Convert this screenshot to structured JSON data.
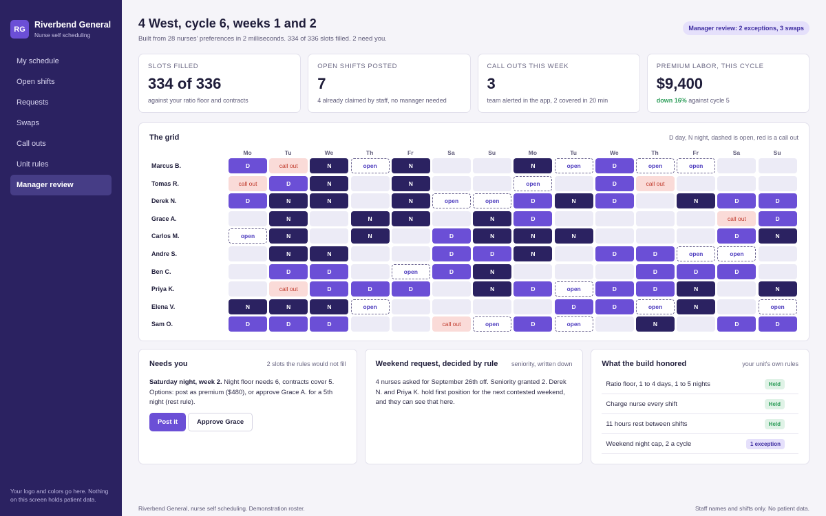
{
  "app": {
    "logo_initials": "RG",
    "name": "Riverbend General",
    "subtitle": "Nurse self scheduling"
  },
  "nav": [
    {
      "label": "My schedule",
      "active": false
    },
    {
      "label": "Open shifts",
      "active": false
    },
    {
      "label": "Requests",
      "active": false
    },
    {
      "label": "Swaps",
      "active": false
    },
    {
      "label": "Call outs",
      "active": false
    },
    {
      "label": "Unit rules",
      "active": false
    },
    {
      "label": "Manager review",
      "active": true
    }
  ],
  "sidebar_footer": "Your logo and colors go here. Nothing on this screen holds patient data.",
  "header": {
    "title": "4 West, cycle 6, weeks 1 and 2",
    "subtitle": "Built from 28 nurses' preferences in 2 milliseconds. 334 of 336 slots filled. 2 need you.",
    "badge": "Manager review: 2 exceptions, 3 swaps"
  },
  "kpis": [
    {
      "label": "Slots filled",
      "value": "334 of 336",
      "note": "against your ratio floor and contracts",
      "note_highlight": ""
    },
    {
      "label": "Open shifts posted",
      "value": "7",
      "note": "4 already claimed by staff, no manager needed",
      "note_highlight": ""
    },
    {
      "label": "Call outs this week",
      "value": "3",
      "note": "team alerted in the app, 2 covered in 20 min",
      "note_highlight": ""
    },
    {
      "label": "Premium labor, this cycle",
      "value": "$9,400",
      "note": "against cycle 5",
      "note_highlight": "down 16%"
    }
  ],
  "grid": {
    "title": "The grid",
    "legend": "D day, N night, dashed is open, red is a call out",
    "days": [
      "Mo",
      "Tu",
      "We",
      "Th",
      "Fr",
      "Sa",
      "Su",
      "Mo",
      "Tu",
      "We",
      "Th",
      "Fr",
      "Sa",
      "Su"
    ],
    "labels": {
      "D": "D",
      "N": "N",
      "open": "open",
      "callout": "call out"
    },
    "rows": [
      {
        "name": "Marcus B.",
        "cells": [
          "D",
          "callout",
          "N",
          "open",
          "N",
          "",
          "",
          "N",
          "open",
          "D",
          "open",
          "open",
          "",
          ""
        ]
      },
      {
        "name": "Tomas R.",
        "cells": [
          "callout",
          "D",
          "N",
          "",
          "N",
          "",
          "",
          "open",
          "",
          "D",
          "callout",
          "",
          "",
          ""
        ]
      },
      {
        "name": "Derek N.",
        "cells": [
          "D",
          "N",
          "N",
          "",
          "N",
          "open",
          "open",
          "D",
          "N",
          "D",
          "",
          "N",
          "D",
          "D"
        ]
      },
      {
        "name": "Grace A.",
        "cells": [
          "",
          "N",
          "",
          "N",
          "N",
          "",
          "N",
          "D",
          "",
          "",
          "",
          "",
          "callout",
          "D"
        ]
      },
      {
        "name": "Carlos M.",
        "cells": [
          "open",
          "N",
          "",
          "N",
          "",
          "D",
          "N",
          "N",
          "N",
          "",
          "",
          "",
          "D",
          "N"
        ]
      },
      {
        "name": "Andre S.",
        "cells": [
          "",
          "N",
          "N",
          "",
          "",
          "D",
          "D",
          "N",
          "",
          "D",
          "D",
          "open",
          "open",
          ""
        ]
      },
      {
        "name": "Ben C.",
        "cells": [
          "",
          "D",
          "D",
          "",
          "open",
          "D",
          "N",
          "",
          "",
          "",
          "D",
          "D",
          "D",
          ""
        ]
      },
      {
        "name": "Priya K.",
        "cells": [
          "",
          "callout",
          "D",
          "D",
          "D",
          "",
          "N",
          "D",
          "open",
          "D",
          "D",
          "N",
          "",
          "N"
        ]
      },
      {
        "name": "Elena V.",
        "cells": [
          "N",
          "N",
          "N",
          "open",
          "",
          "",
          "",
          "",
          "D",
          "D",
          "open",
          "N",
          "",
          "open"
        ]
      },
      {
        "name": "Sam O.",
        "cells": [
          "D",
          "D",
          "D",
          "",
          "",
          "callout",
          "open",
          "D",
          "open",
          "",
          "N",
          "",
          "D",
          "D"
        ]
      }
    ]
  },
  "needs_you": {
    "title": "Needs you",
    "note": "2 slots the rules would not fill",
    "lead": "Saturday night, week 2.",
    "body": " Night floor needs 6, contracts cover 5. Options: post as premium ($480), or approve Grace A. for a 5th night (rest rule).",
    "primary_label": "Post it",
    "secondary_label": "Approve Grace"
  },
  "weekend": {
    "title": "Weekend request, decided by rule",
    "note": "seniority, written down",
    "body": "4 nurses asked for September 26th off. Seniority granted 2. Derek N. and Priya K. hold first position for the next contested weekend, and they can see that here."
  },
  "honored": {
    "title": "What the build honored",
    "note": "your unit's own rules",
    "rules": [
      {
        "label": "Ratio floor, 1 to 4 days, 1 to 5 nights",
        "status": "Held",
        "kind": "held"
      },
      {
        "label": "Charge nurse every shift",
        "status": "Held",
        "kind": "held"
      },
      {
        "label": "11 hours rest between shifts",
        "status": "Held",
        "kind": "held"
      },
      {
        "label": "Weekend night cap, 2 a cycle",
        "status": "1 exception",
        "kind": "exception"
      }
    ]
  },
  "footer": {
    "left": "Riverbend General, nurse self scheduling. Demonstration roster.",
    "right": "Staff names and shifts only. No patient data."
  }
}
